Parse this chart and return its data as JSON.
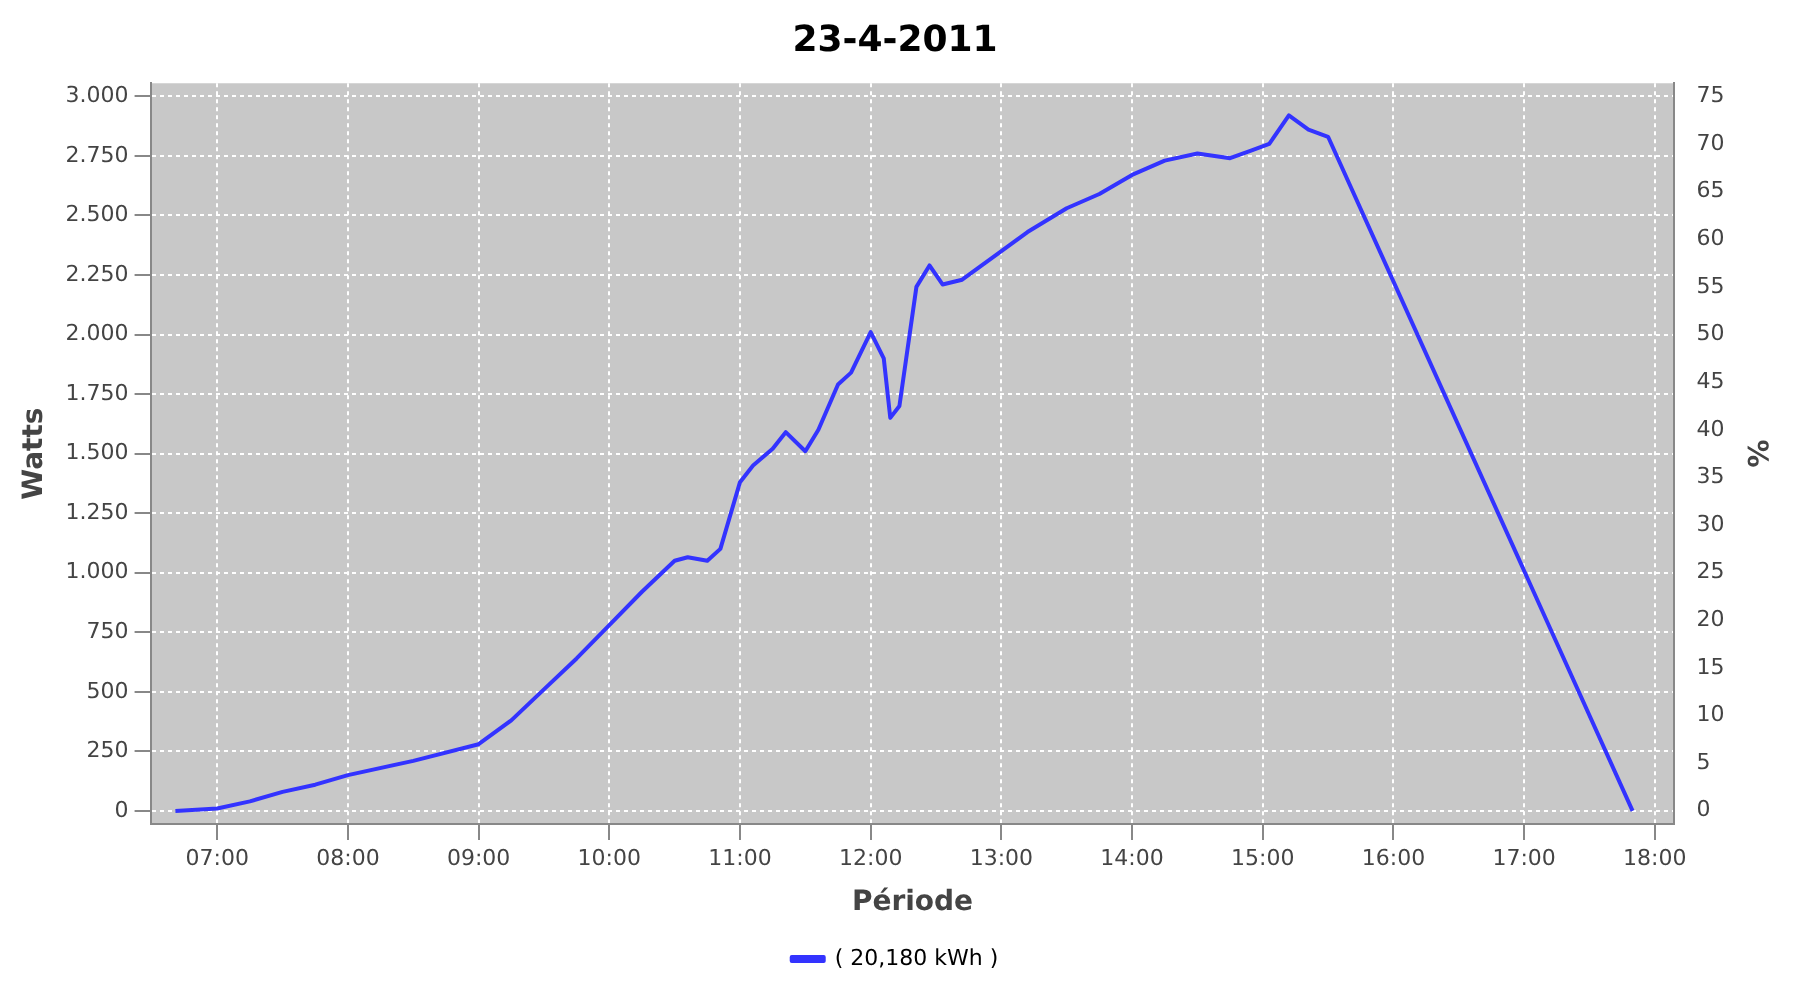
{
  "chart_data": {
    "type": "line",
    "title": "23-4-2011",
    "xlabel": "Période",
    "ylabel": "Watts",
    "y2label": "%",
    "xlim": [
      6.49,
      18.15
    ],
    "xticks": [
      {
        "value": 7,
        "label": "07:00"
      },
      {
        "value": 8,
        "label": "08:00"
      },
      {
        "value": 9,
        "label": "09:00"
      },
      {
        "value": 10,
        "label": "10:00"
      },
      {
        "value": 11,
        "label": "11:00"
      },
      {
        "value": 12,
        "label": "12:00"
      },
      {
        "value": 13,
        "label": "13:00"
      },
      {
        "value": 14,
        "label": "14:00"
      },
      {
        "value": 15,
        "label": "15:00"
      },
      {
        "value": 16,
        "label": "16:00"
      },
      {
        "value": 17,
        "label": "17:00"
      },
      {
        "value": 18,
        "label": "18:00"
      }
    ],
    "ylim": [
      -55,
      3055
    ],
    "yticks": [
      0,
      250,
      500,
      750,
      {
        "value": 1000,
        "label": "1.000"
      },
      {
        "value": 1250,
        "label": "1.250"
      },
      {
        "value": 1500,
        "label": "1.500"
      },
      {
        "value": 1750,
        "label": "1.750"
      },
      {
        "value": 2000,
        "label": "2.000"
      },
      {
        "value": 2250,
        "label": "2.250"
      },
      {
        "value": 2500,
        "label": "2.500"
      },
      {
        "value": 2750,
        "label": "2.750"
      },
      {
        "value": 3000,
        "label": "3.000"
      }
    ],
    "y2lim": [
      -1.4,
      76.4
    ],
    "y2ticks": [
      0,
      5,
      10,
      15,
      20,
      25,
      30,
      35,
      40,
      45,
      50,
      55,
      60,
      65,
      70,
      75
    ],
    "grid": true,
    "legend": "bottom",
    "marker": "none",
    "line_style": "solid",
    "x": [
      6.68,
      7.0,
      7.25,
      7.5,
      7.75,
      8.0,
      8.5,
      9.0,
      9.25,
      9.5,
      9.75,
      10.0,
      10.25,
      10.5,
      10.6,
      10.75,
      10.85,
      11.0,
      11.1,
      11.25,
      11.35,
      11.5,
      11.6,
      11.75,
      11.85,
      12.0,
      12.1,
      12.15,
      12.22,
      12.35,
      12.45,
      12.55,
      12.7,
      12.85,
      13.0,
      13.2,
      13.5,
      13.75,
      14.0,
      14.25,
      14.5,
      14.75,
      14.9,
      15.05,
      15.2,
      15.35,
      15.5,
      17.83
    ],
    "series": [
      {
        "name": "( 20,180 kWh )",
        "color": "#3333ff",
        "values": [
          0,
          10,
          40,
          80,
          110,
          150,
          210,
          280,
          380,
          510,
          640,
          780,
          920,
          1050,
          1065,
          1050,
          1100,
          1380,
          1450,
          1520,
          1590,
          1510,
          1600,
          1790,
          1840,
          2010,
          1900,
          1650,
          1700,
          2200,
          2290,
          2210,
          2230,
          2290,
          2350,
          2430,
          2530,
          2590,
          2670,
          2730,
          2760,
          2740,
          2770,
          2800,
          2920,
          2860,
          2830,
          0
        ]
      }
    ]
  }
}
